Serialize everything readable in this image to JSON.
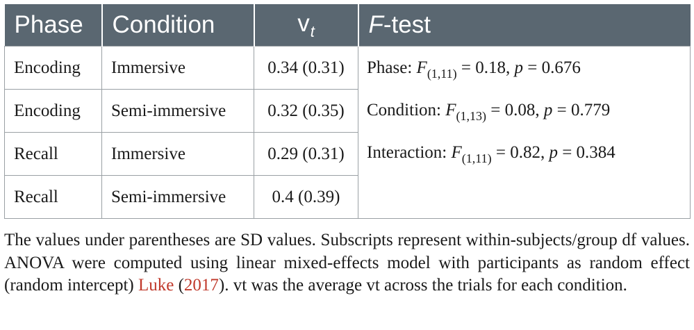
{
  "table": {
    "headers": {
      "phase": "Phase",
      "condition": "Condition",
      "v_base": "v",
      "v_sub": "t",
      "ftest_symbol": "F",
      "ftest_rest": "-test"
    },
    "rows": [
      {
        "phase": "Encoding",
        "condition": "Immersive",
        "vt": "0.34 (0.31)"
      },
      {
        "phase": "Encoding",
        "condition": "Semi-immersive",
        "vt": "0.32 (0.35)"
      },
      {
        "phase": "Recall",
        "condition": "Immersive",
        "vt": "0.29 (0.31)"
      },
      {
        "phase": "Recall",
        "condition": "Semi-immersive",
        "vt": "0.4 (0.39)"
      }
    ],
    "ftest": [
      {
        "label": "Phase: ",
        "sym": "F",
        "sub": "(1,11)",
        "mid": " = 0.18, ",
        "p": "p",
        "end": " = 0.676"
      },
      {
        "label": "Condition: ",
        "sym": "F",
        "sub": "(1,13)",
        "mid": " = 0.08, ",
        "p": "p",
        "end": " = 0.779"
      },
      {
        "label": "Interaction: ",
        "sym": "F",
        "sub": "(1,11)",
        "mid": " = 0.82, ",
        "p": "p",
        "end": " = 0.384"
      }
    ]
  },
  "caption": {
    "before": "The values under parentheses are SD values. Subscripts represent within-subjects/group df values. ANOVA were computed using linear mixed-effects model with participants as random effect (random intercept) ",
    "cite_author": "Luke",
    "cite_open": " (",
    "cite_year": "2017",
    "after": "). vt was the average vt across the trials for each condition."
  },
  "colors": {
    "header_bg": "#5a6771",
    "header_text": "#ffffff",
    "citation": "#c0392b",
    "border": "#9aa0a4"
  }
}
